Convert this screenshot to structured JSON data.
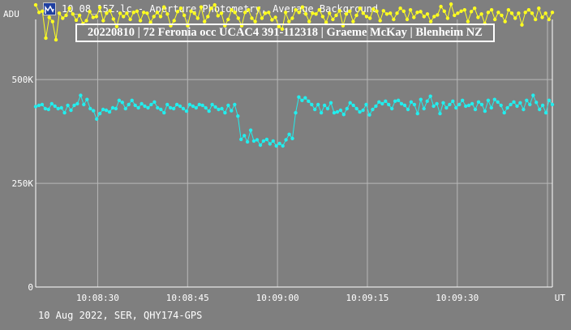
{
  "window": {
    "title": "10_08_15Z.lc - Aperture Photometry, Average Background",
    "icon": "lightcurve-app-icon"
  },
  "footer": "10 Aug 2022, SER, QHY174-GPS",
  "colors": {
    "background": "#7f7f7f",
    "grid": "#b8b8b8",
    "axis": "#ffffff",
    "text": "#ffffff",
    "series_yellow": "#ffff20",
    "series_cyan": "#22eeee"
  },
  "chart_data": {
    "type": "line",
    "title": "20220810 | 72 Feronia occ UCAC4 391-112318 | Graeme McKay | Blenheim NZ",
    "ylabel": "ADU",
    "xlabel": "UT",
    "ylim": [
      0,
      645000
    ],
    "xlim": [
      0,
      100
    ],
    "yticks": [
      {
        "value": 0,
        "label": "0"
      },
      {
        "value": 250000,
        "label": "250K"
      },
      {
        "value": 500000,
        "label": "500K"
      }
    ],
    "xticks": [
      {
        "value": 12,
        "label": "10:08:30"
      },
      {
        "value": 29.4,
        "label": "10:08:45"
      },
      {
        "value": 46.8,
        "label": "10:09:00"
      },
      {
        "value": 64.2,
        "label": "10:09:15"
      },
      {
        "value": 81.6,
        "label": "10:09:30"
      }
    ],
    "grid": true,
    "series": [
      {
        "color": "#ffff20",
        "values": [
          680000,
          662000,
          665000,
          600000,
          650000,
          640000,
          596000,
          660000,
          648000,
          655000,
          672000,
          658000,
          643000,
          655000,
          635000,
          642000,
          664000,
          650000,
          652000,
          674000,
          642000,
          660000,
          666000,
          646000,
          628000,
          660000,
          652000,
          660000,
          645000,
          662000,
          665000,
          642000,
          662000,
          660000,
          638000,
          652000,
          662000,
          652000,
          675000,
          658000,
          630000,
          642000,
          664000,
          672000,
          655000,
          630000,
          665000,
          660000,
          648000,
          675000,
          640000,
          652000,
          672000,
          680000,
          654000,
          660000,
          630000,
          645000,
          668000,
          662000,
          648000,
          630000,
          662000,
          668000,
          648000,
          640000,
          672000,
          648000,
          660000,
          662000,
          644000,
          650000,
          628000,
          622000,
          662000,
          640000,
          648000,
          668000,
          662000,
          675000,
          658000,
          640000,
          660000,
          658000,
          668000,
          652000,
          638000,
          660000,
          645000,
          655000,
          666000,
          630000,
          658000,
          665000,
          640000,
          655000,
          672000,
          660000,
          652000,
          648000,
          670000,
          665000,
          642000,
          666000,
          658000,
          660000,
          645000,
          660000,
          672000,
          665000,
          645000,
          668000,
          650000,
          662000,
          664000,
          652000,
          658000,
          640000,
          652000,
          656000,
          676000,
          665000,
          648000,
          682000,
          655000,
          660000,
          665000,
          668000,
          640000,
          664000,
          672000,
          650000,
          658000,
          635000,
          662000,
          668000,
          645000,
          662000,
          655000,
          640000,
          668000,
          660000,
          648000,
          660000,
          632000,
          662000,
          668000,
          660000,
          645000,
          672000,
          650000,
          660000,
          645000,
          662000
        ]
      },
      {
        "color": "#22eeee",
        "values": [
          435000,
          438000,
          440000,
          430000,
          428000,
          442000,
          436000,
          430000,
          432000,
          420000,
          438000,
          426000,
          438000,
          442000,
          462000,
          440000,
          452000,
          430000,
          425000,
          405000,
          418000,
          428000,
          426000,
          422000,
          432000,
          430000,
          450000,
          445000,
          430000,
          440000,
          450000,
          438000,
          432000,
          442000,
          436000,
          432000,
          440000,
          446000,
          432000,
          428000,
          420000,
          440000,
          432000,
          430000,
          440000,
          436000,
          430000,
          424000,
          440000,
          436000,
          432000,
          440000,
          438000,
          432000,
          424000,
          440000,
          434000,
          428000,
          430000,
          420000,
          438000,
          425000,
          440000,
          412000,
          356000,
          365000,
          350000,
          378000,
          352000,
          355000,
          342000,
          352000,
          356000,
          345000,
          352000,
          340000,
          346000,
          340000,
          355000,
          368000,
          358000,
          420000,
          458000,
          450000,
          456000,
          448000,
          440000,
          428000,
          440000,
          420000,
          438000,
          430000,
          444000,
          420000,
          422000,
          426000,
          416000,
          430000,
          444000,
          438000,
          430000,
          422000,
          426000,
          440000,
          415000,
          428000,
          436000,
          446000,
          442000,
          448000,
          440000,
          430000,
          448000,
          450000,
          442000,
          438000,
          428000,
          446000,
          440000,
          418000,
          452000,
          430000,
          448000,
          460000,
          436000,
          442000,
          418000,
          444000,
          432000,
          440000,
          448000,
          432000,
          440000,
          450000,
          436000,
          438000,
          442000,
          428000,
          446000,
          440000,
          424000,
          450000,
          432000,
          452000,
          446000,
          438000,
          420000,
          432000,
          440000,
          446000,
          436000,
          444000,
          428000,
          450000,
          440000,
          462000,
          445000,
          428000,
          438000,
          420000,
          450000,
          440000
        ]
      }
    ]
  }
}
